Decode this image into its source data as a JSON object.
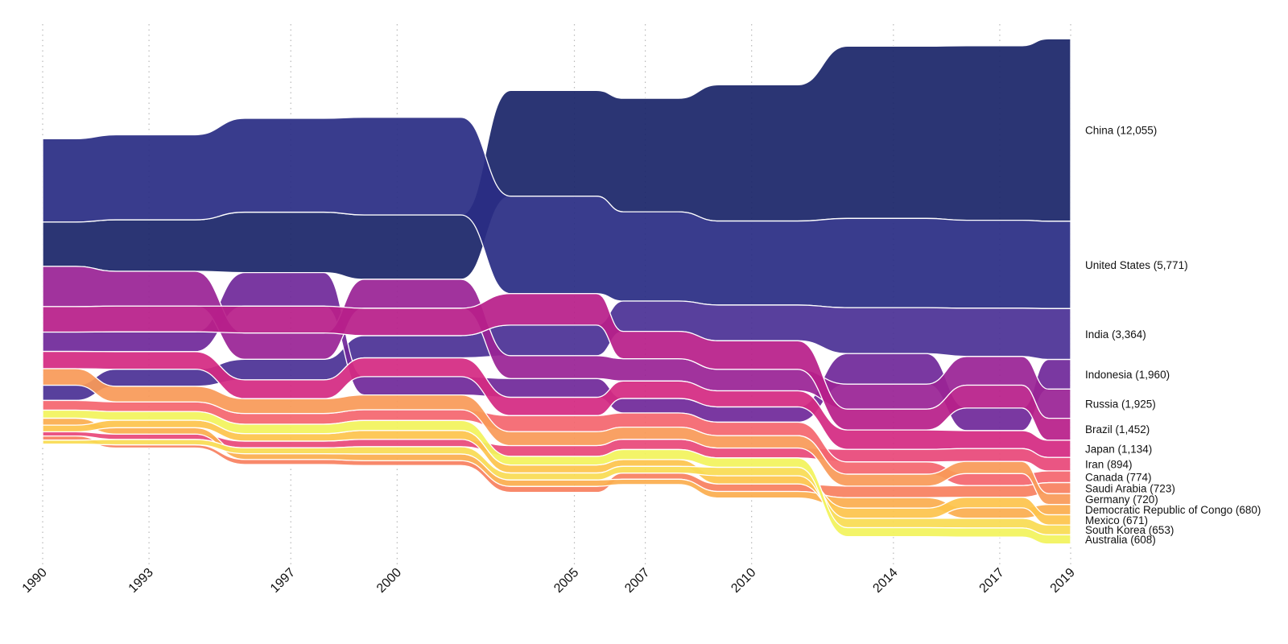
{
  "chart_data": {
    "type": "area",
    "subtype": "ranked-streamgraph",
    "title": "",
    "xlabel": "",
    "ylabel": "",
    "grid": "vertical dotted lines at year ticks",
    "legend": "direct labels right",
    "x": [
      1990,
      1993,
      1997,
      2000,
      2005,
      2007,
      2010,
      2014,
      2017,
      2019
    ],
    "tick_labels": [
      "1990",
      "1993",
      "1997",
      "2000",
      "2005",
      "2007",
      "2010",
      "2014",
      "2017",
      "2019"
    ],
    "series": [
      {
        "name": "China",
        "label": "China (12,055)",
        "color": "#1b2669",
        "values": [
          2930,
          3400,
          3990,
          4250,
          6990,
          7500,
          9000,
          11380,
          11530,
          12055
        ]
      },
      {
        "name": "United States",
        "label": "United States (5,771)",
        "color": "#2a2d84",
        "values": [
          5500,
          5620,
          6200,
          6450,
          6440,
          5900,
          5550,
          5900,
          5810,
          5771
        ]
      },
      {
        "name": "India",
        "label": "India (3,364)",
        "color": "#4b3196",
        "values": [
          1010,
          1130,
          1360,
          1470,
          2020,
          2000,
          2360,
          3030,
          3190,
          3364
        ]
      },
      {
        "name": "Indonesia",
        "label": "Indonesia (1,960)",
        "color": "#70299a",
        "values": [
          1280,
          1310,
          2220,
          1210,
          1240,
          960,
          1010,
          2020,
          1490,
          1960
        ]
      },
      {
        "name": "Russia",
        "label": "Russia (1,925)",
        "color": "#9a2496",
        "values": [
          2660,
          2300,
          1740,
          1915,
          1510,
          1470,
          1420,
          1650,
          1900,
          1925
        ]
      },
      {
        "name": "Brazil",
        "label": "Brazil (1,452)",
        "color": "#b81f8a",
        "values": [
          1680,
          1700,
          1770,
          1810,
          2080,
          1810,
          1890,
          1380,
          1510,
          1452
        ]
      },
      {
        "name": "Japan",
        "label": "Japan (1,134)",
        "color": "#d42a82",
        "values": [
          1140,
          1160,
          1245,
          1240,
          1210,
          1150,
          1060,
          1280,
          1190,
          1134
        ]
      },
      {
        "name": "Iran",
        "label": "Iran (894)",
        "color": "#e8487a",
        "values": [
          280,
          355,
          445,
          490,
          710,
          680,
          655,
          830,
          850,
          894
        ]
      },
      {
        "name": "Canada",
        "label": "Canada (774)",
        "color": "#f4666f",
        "values": [
          640,
          640,
          710,
          710,
          1060,
          940,
          890,
          810,
          795,
          774
        ]
      },
      {
        "name": "Saudi Arabia",
        "label": "Saudi Arabia (723)",
        "color": "#f88060",
        "values": [
          270,
          215,
          330,
          320,
          400,
          410,
          500,
          760,
          770,
          723
        ]
      },
      {
        "name": "Germany",
        "label": "Germany (720)",
        "color": "#f99a58",
        "values": [
          1090,
          1030,
          975,
          975,
          920,
          800,
          815,
          790,
          800,
          720
        ]
      },
      {
        "name": "Democratic Republic of Congo",
        "label": "Democratic Republic of Congo (680)",
        "color": "#fbad4f",
        "values": [
          460,
          425,
          380,
          440,
          425,
          350,
          430,
          690,
          690,
          680
        ]
      },
      {
        "name": "Mexico",
        "label": "Mexico (671)",
        "color": "#fdc44c",
        "values": [
          440,
          495,
          495,
          585,
          530,
          450,
          540,
          675,
          700,
          671
        ]
      },
      {
        "name": "South Korea",
        "label": "South Korea (653)",
        "color": "#f9dc53",
        "values": [
          260,
          350,
          390,
          480,
          460,
          440,
          560,
          620,
          640,
          653
        ]
      },
      {
        "name": "Australia",
        "label": "Australia (608)",
        "color": "#f2f35c",
        "values": [
          530,
          570,
          620,
          660,
          570,
          660,
          620,
          590,
          600,
          608
        ]
      }
    ]
  }
}
